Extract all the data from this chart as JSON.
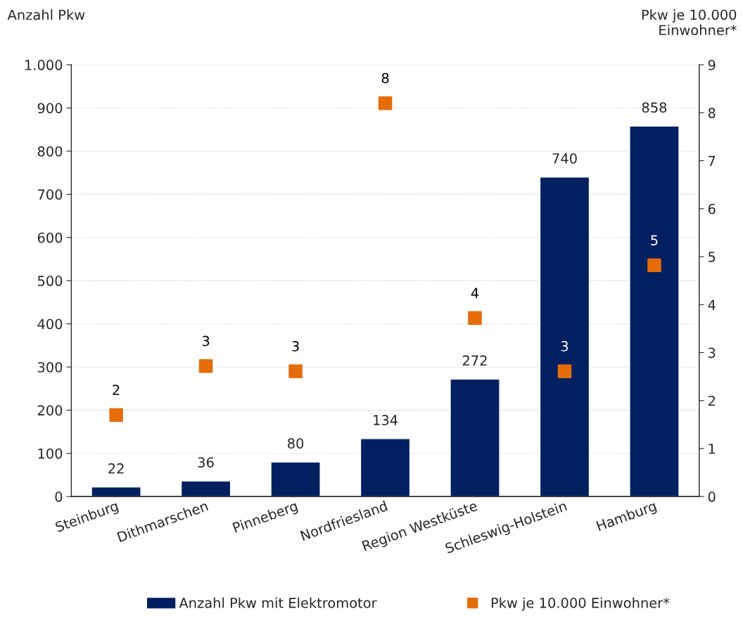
{
  "chart_data": {
    "type": "bar",
    "ylabel": "Anzahl Pkw",
    "y2label": "Pkw je 10.000\nEinwohner*",
    "categories": [
      "Steinburg",
      "Dithmarschen",
      "Pinneberg",
      "Nordfriesland",
      "Region Westküste",
      "Schleswig-Holstein",
      "Hamburg"
    ],
    "series": [
      {
        "name": "Anzahl Pkw mit Elektromotor",
        "color": "#002060",
        "values": [
          22,
          36,
          80,
          134,
          272,
          740,
          858
        ],
        "data_labels": true
      },
      {
        "name": "Pkw je 10.000 Einwohner*",
        "type": "scatter",
        "axis": "y2",
        "marker": "square",
        "color": "#e46c0a",
        "values": [
          1.7,
          2.72,
          2.61,
          8.2,
          3.72,
          2.61,
          4.82
        ],
        "value_labels": [
          "2",
          "3",
          "3",
          "8",
          "4",
          "3",
          "5"
        ]
      }
    ],
    "ylim": [
      0,
      1000
    ],
    "yticks": [
      0,
      100,
      200,
      300,
      400,
      500,
      600,
      700,
      800,
      900,
      {
        "value": 1000,
        "label": "1.000"
      }
    ],
    "y2lim": [
      0,
      9
    ],
    "y2ticks": [
      0,
      1,
      2,
      3,
      4,
      5,
      6,
      7,
      8,
      9
    ],
    "grid": "y",
    "legend": "bottom"
  }
}
